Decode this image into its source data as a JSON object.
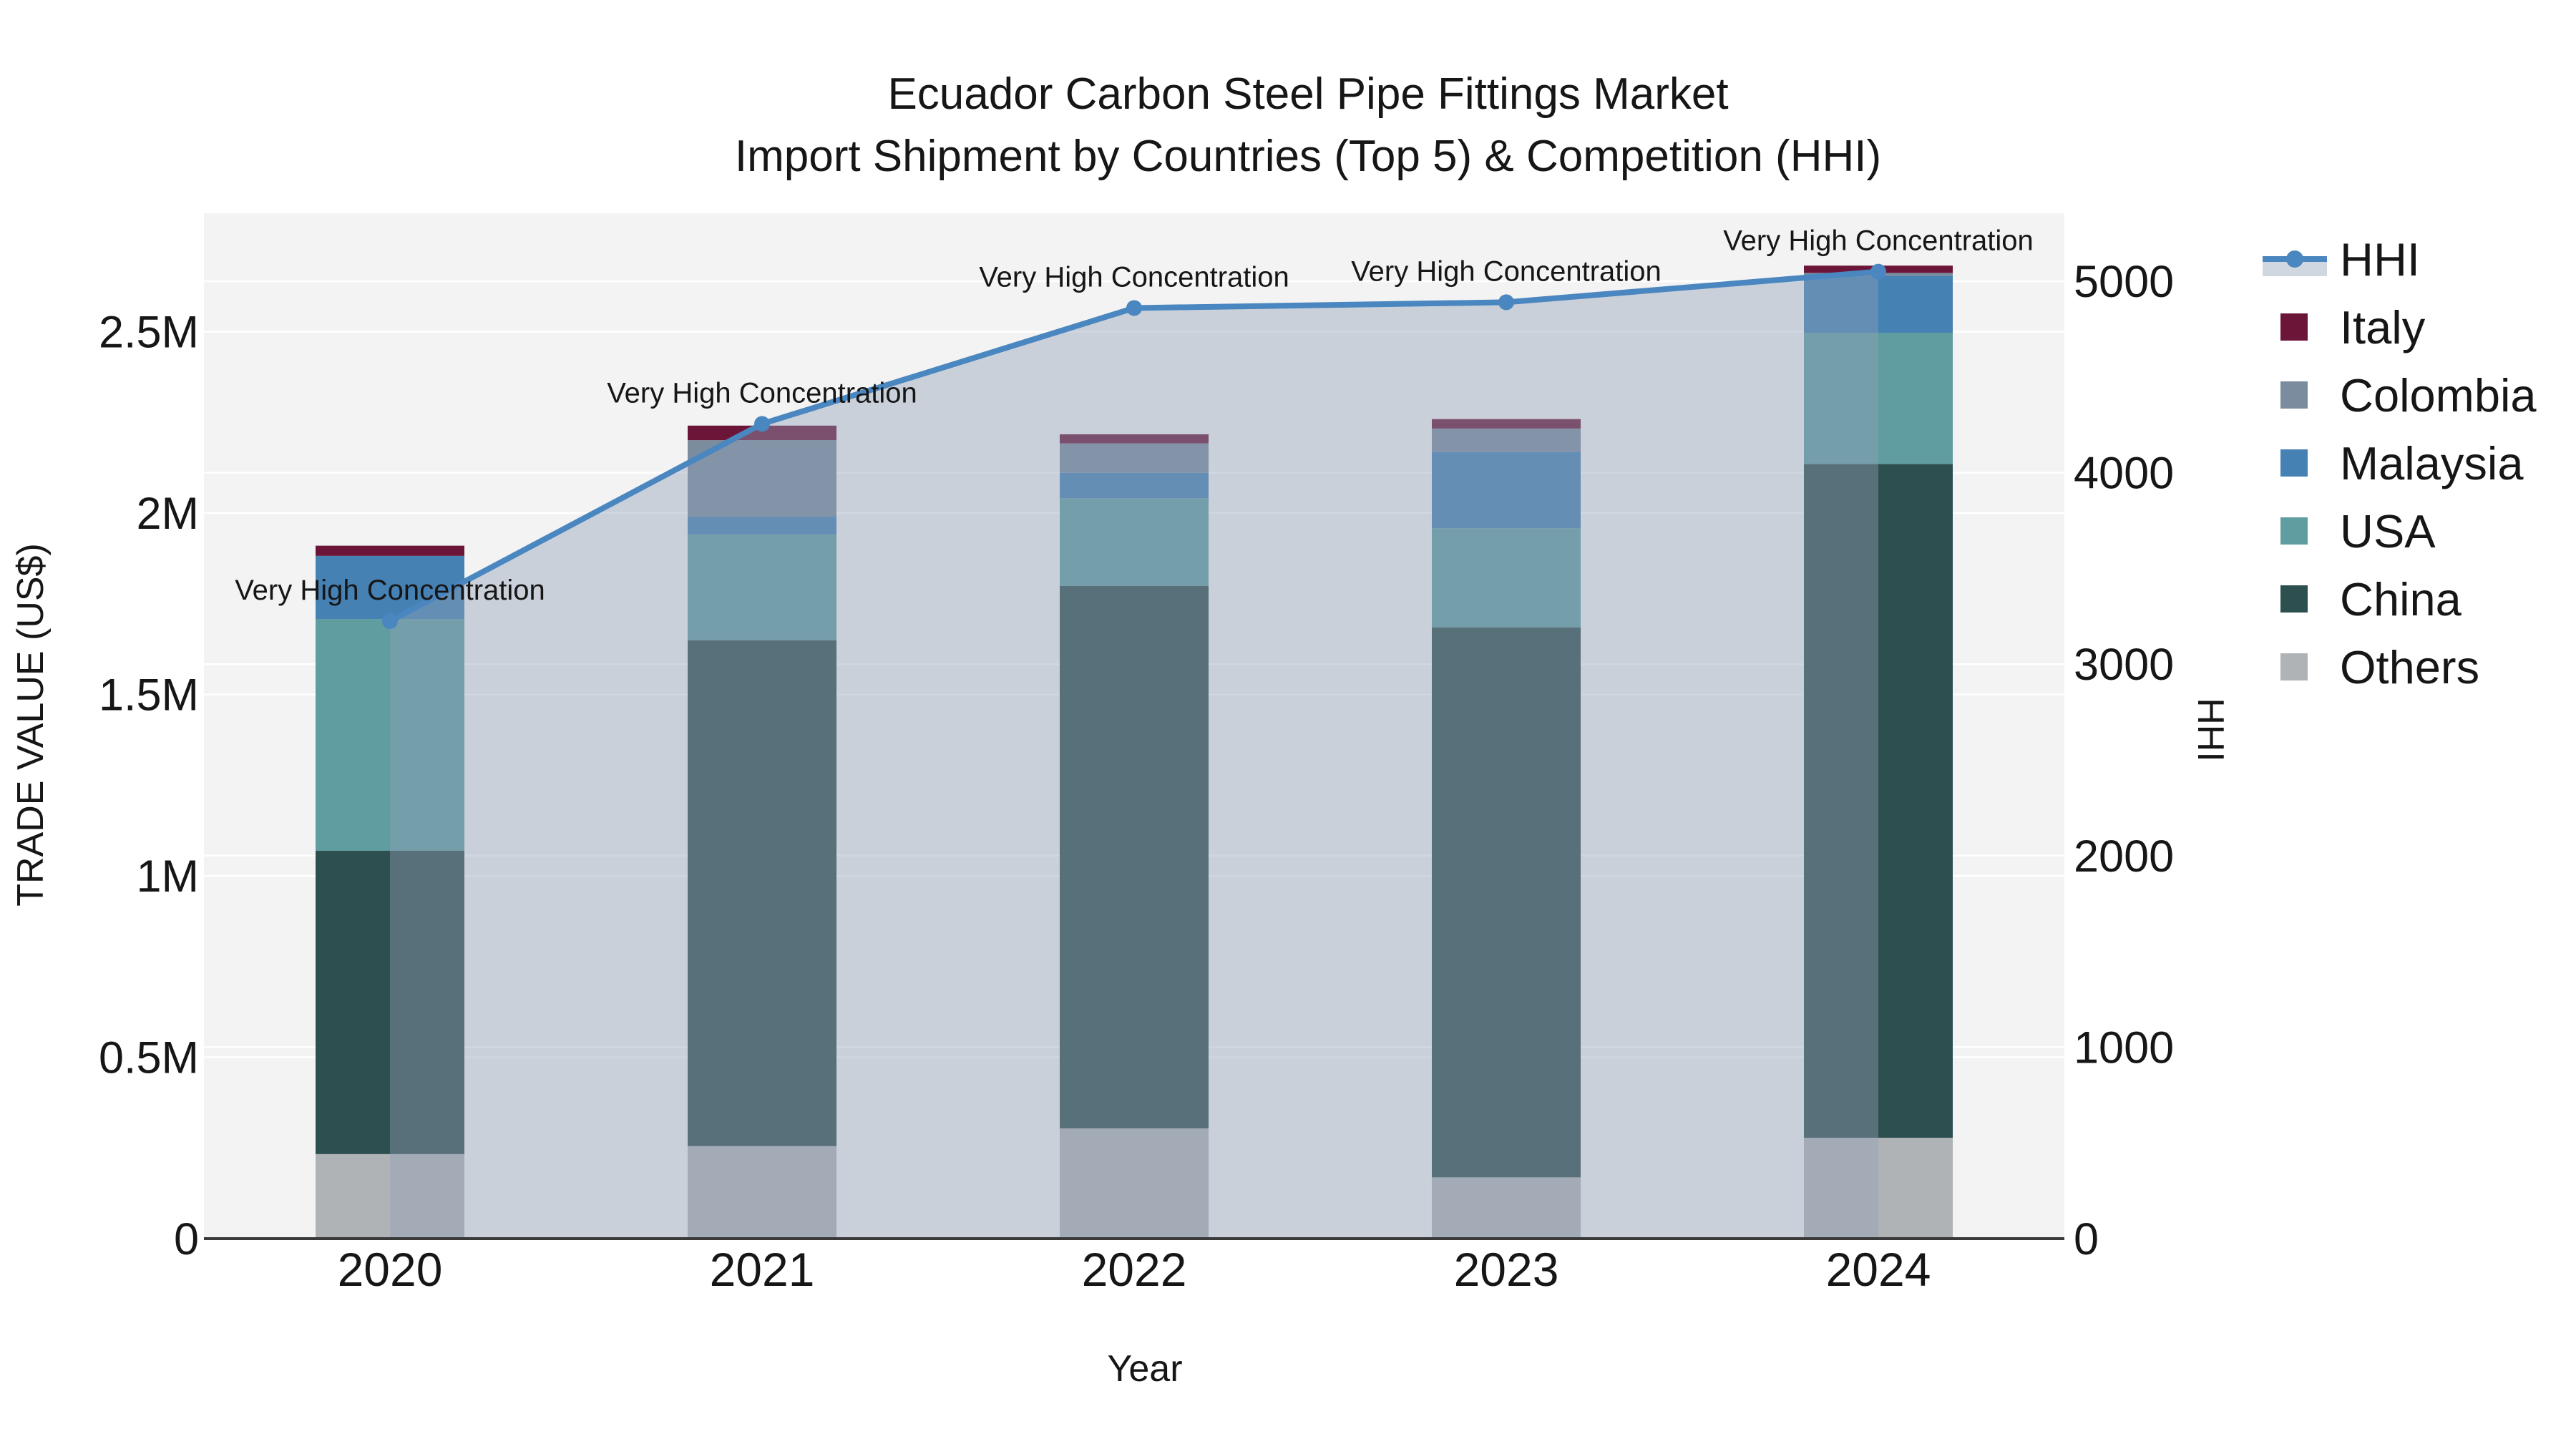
{
  "chart_data": {
    "type": "combo-stacked-bar-line-dual-axis",
    "title": {
      "line1": "Ecuador Carbon Steel Pipe Fittings Market",
      "line2": "Import Shipment by Countries (Top 5) & Competition (HHI)"
    },
    "x_axis": {
      "title": "Year",
      "categories": [
        "2020",
        "2021",
        "2022",
        "2023",
        "2024"
      ]
    },
    "y_left": {
      "title": "TRADE VALUE (US$)",
      "tick_labels": [
        "0",
        "0.5M",
        "1M",
        "1.5M",
        "2M",
        "2.5M"
      ],
      "tick_values_usd": [
        0,
        500000,
        1000000,
        1500000,
        2000000,
        2500000
      ],
      "range_usd": [
        0,
        2830000
      ],
      "grid": true
    },
    "y_right": {
      "title": "HHI",
      "tick_labels": [
        "0",
        "1000",
        "2000",
        "3000",
        "4000",
        "5000"
      ],
      "tick_values": [
        0,
        1000,
        2000,
        3000,
        4000,
        5000
      ],
      "range": [
        0,
        5355
      ],
      "grid": true
    },
    "bar_series_stack_bottom_to_top": [
      {
        "name": "Others",
        "color": "#b0b3b5",
        "values_usd": [
          233000,
          255000,
          304000,
          169000,
          278000
        ]
      },
      {
        "name": "China",
        "color": "#2d4f4f",
        "values_usd": [
          836000,
          1394000,
          1495000,
          1516000,
          1857000
        ]
      },
      {
        "name": "USA",
        "color": "#5f9da0",
        "values_usd": [
          639000,
          292000,
          242000,
          273000,
          362000
        ]
      },
      {
        "name": "Malaysia",
        "color": "#4681b4",
        "values_usd": [
          174000,
          49000,
          70000,
          211000,
          157000
        ]
      },
      {
        "name": "Colombia",
        "color": "#7b8c9e",
        "values_usd": [
          0,
          211000,
          81000,
          64000,
          8000
        ]
      },
      {
        "name": "Italy",
        "color": "#6b1539",
        "values_usd": [
          28000,
          40000,
          25000,
          26000,
          20000
        ]
      }
    ],
    "bar_totals_usd": [
      1910000,
      2241000,
      2217000,
      2259000,
      2682000
    ],
    "line_series": {
      "name": "HHI",
      "color": "#4a86bf",
      "area_fill_color": "rgba(145,160,184,0.42)",
      "values": [
        3225,
        4255,
        4860,
        4890,
        5050
      ]
    },
    "annotations": [
      {
        "text": "Very High Concentration",
        "x_category": "2020"
      },
      {
        "text": "Very High Concentration",
        "x_category": "2021"
      },
      {
        "text": "Very High Concentration",
        "x_category": "2022"
      },
      {
        "text": "Very High Concentration",
        "x_category": "2023"
      },
      {
        "text": "Very High Concentration",
        "x_category": "2024"
      }
    ],
    "legend": {
      "position": "right",
      "items": [
        {
          "label": "HHI",
          "type": "line-marker-fill",
          "color": "#4a86bf"
        },
        {
          "label": "Italy",
          "type": "swatch",
          "color": "#6b1539"
        },
        {
          "label": "Colombia",
          "type": "swatch",
          "color": "#7b8c9e"
        },
        {
          "label": "Malaysia",
          "type": "swatch",
          "color": "#4681b4"
        },
        {
          "label": "USA",
          "type": "swatch",
          "color": "#5f9da0"
        },
        {
          "label": "China",
          "type": "swatch",
          "color": "#2d4f4f"
        },
        {
          "label": "Others",
          "type": "swatch",
          "color": "#b0b3b5"
        }
      ]
    },
    "style_colors": {
      "plot_background": "#f3f3f3",
      "figure_background": "#ffffff",
      "gridline": "#ffffff",
      "axis_line": "#3a3a3a",
      "text": "#161616"
    }
  }
}
